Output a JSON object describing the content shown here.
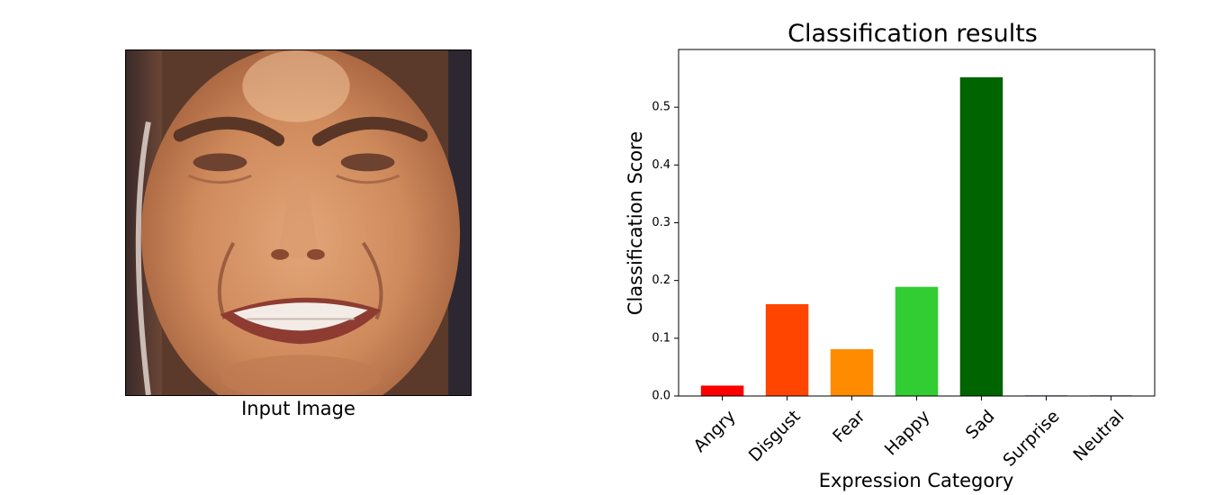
{
  "input_panel": {
    "caption": "Input Image",
    "image_alt": "face-photo"
  },
  "chart_data": {
    "type": "bar",
    "title": "Classification results",
    "xlabel": "Expression Category",
    "ylabel": "Classification Score",
    "categories": [
      "Angry",
      "Disgust",
      "Fear",
      "Happy",
      "Sad",
      "Surprise",
      "Neutral"
    ],
    "values": [
      0.018,
      0.159,
      0.081,
      0.189,
      0.552,
      0.001,
      0.001
    ],
    "colors": [
      "#ff0000",
      "#ff4500",
      "#ff8c00",
      "#32cd32",
      "#006400",
      "#000080",
      "#000080"
    ],
    "ylim": [
      0,
      0.6
    ],
    "yticks": [
      0.0,
      0.1,
      0.2,
      0.3,
      0.4,
      0.5
    ],
    "ytick_labels": [
      "0.0",
      "0.1",
      "0.2",
      "0.3",
      "0.4",
      "0.5"
    ],
    "grid": false,
    "legend": "none"
  }
}
